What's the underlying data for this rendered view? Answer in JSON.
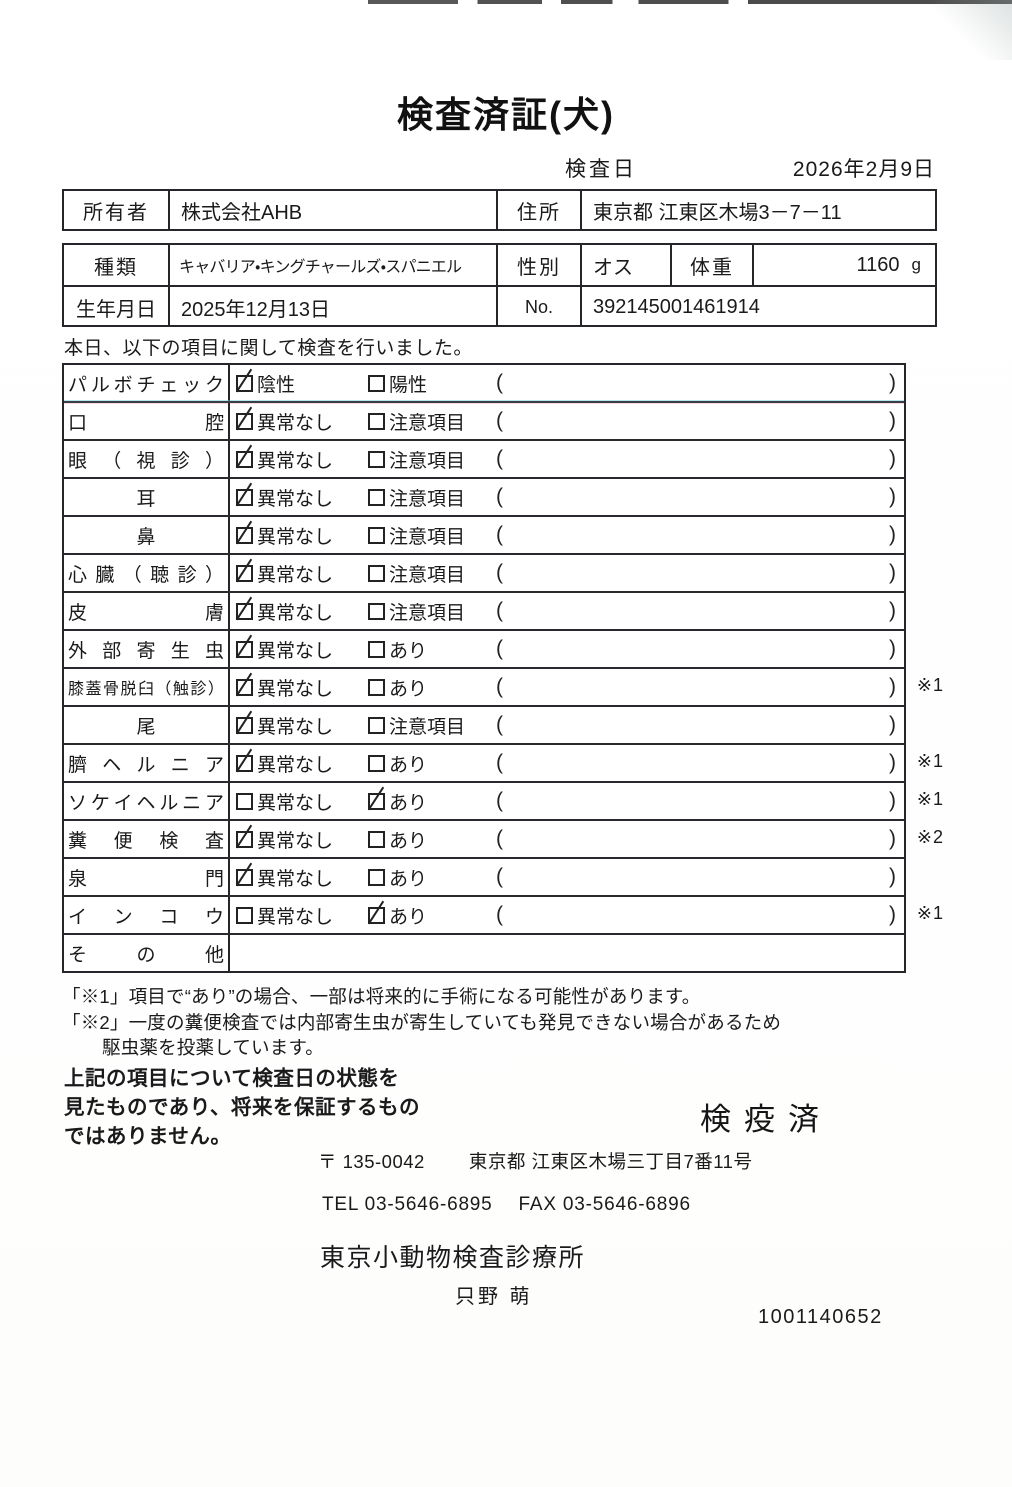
{
  "title": "検査済証(犬)",
  "exam_date": {
    "label": "検査日",
    "value": "2026年2月9日"
  },
  "owner_table": {
    "owner_label": "所有者",
    "owner_value": "株式会社AHB",
    "address_label": "住所",
    "address_value": "東京都 江東区木場3－7－11"
  },
  "info_table": {
    "breed_label": "種類",
    "breed_value": "キャバリア・キングチャールズ・スパニエル",
    "sex_label": "性別",
    "sex_value": "オス",
    "weight_label": "体重",
    "weight_value": "1160",
    "weight_unit": "g",
    "dob_label": "生年月日",
    "dob_value": "2025年12月13日",
    "no_label": "No.",
    "no_value": "392145001461914"
  },
  "intro": "本日、以下の項目に関して検査を行いました。",
  "checklist": {
    "rows": [
      {
        "label": "パルボチェック",
        "opt1": "陰性",
        "opt1_checked": true,
        "opt2": "陽性",
        "opt2_checked": false,
        "note": "",
        "empty": false
      },
      {
        "label": "口腔",
        "opt1": "異常なし",
        "opt1_checked": true,
        "opt2": "注意項目",
        "opt2_checked": false,
        "note": "",
        "empty": false
      },
      {
        "label": "眼（視診）",
        "opt1": "異常なし",
        "opt1_checked": true,
        "opt2": "注意項目",
        "opt2_checked": false,
        "note": "",
        "empty": false
      },
      {
        "label": "耳",
        "opt1": "異常なし",
        "opt1_checked": true,
        "opt2": "注意項目",
        "opt2_checked": false,
        "note": "",
        "empty": false
      },
      {
        "label": "鼻",
        "opt1": "異常なし",
        "opt1_checked": true,
        "opt2": "注意項目",
        "opt2_checked": false,
        "note": "",
        "empty": false
      },
      {
        "label": "心臓（聴診）",
        "opt1": "異常なし",
        "opt1_checked": true,
        "opt2": "注意項目",
        "opt2_checked": false,
        "note": "",
        "empty": false
      },
      {
        "label": "皮膚",
        "opt1": "異常なし",
        "opt1_checked": true,
        "opt2": "注意項目",
        "opt2_checked": false,
        "note": "",
        "empty": false
      },
      {
        "label": "外部寄生虫",
        "opt1": "異常なし",
        "opt1_checked": true,
        "opt2": "あり",
        "opt2_checked": false,
        "note": "",
        "empty": false
      },
      {
        "label": "膝蓋骨脱臼（触診）",
        "opt1": "異常なし",
        "opt1_checked": true,
        "opt2": "あり",
        "opt2_checked": false,
        "note": "※1",
        "empty": false
      },
      {
        "label": "尾",
        "opt1": "異常なし",
        "opt1_checked": true,
        "opt2": "注意項目",
        "opt2_checked": false,
        "note": "",
        "empty": false
      },
      {
        "label": "臍ヘルニア",
        "opt1": "異常なし",
        "opt1_checked": true,
        "opt2": "あり",
        "opt2_checked": false,
        "note": "※1",
        "empty": false
      },
      {
        "label": "ソケイヘルニア",
        "opt1": "異常なし",
        "opt1_checked": false,
        "opt2": "あり",
        "opt2_checked": true,
        "note": "※1",
        "empty": false
      },
      {
        "label": "糞便検査",
        "opt1": "異常なし",
        "opt1_checked": true,
        "opt2": "あり",
        "opt2_checked": false,
        "note": "※2",
        "empty": false
      },
      {
        "label": "泉門",
        "opt1": "異常なし",
        "opt1_checked": true,
        "opt2": "あり",
        "opt2_checked": false,
        "note": "",
        "empty": false
      },
      {
        "label": "インコウ",
        "opt1": "異常なし",
        "opt1_checked": false,
        "opt2": "あり",
        "opt2_checked": true,
        "note": "※1",
        "empty": false
      },
      {
        "label": "その他",
        "opt1": "",
        "opt1_checked": false,
        "opt2": "",
        "opt2_checked": false,
        "note": "",
        "empty": true
      }
    ]
  },
  "footnotes": {
    "note1": "「※1」項目で“あり”の場合、一部は将来的に手術になる可能性があります。",
    "note2_line1": "「※2」一度の糞便検査では内部寄生虫が寄生していても発見できない場合があるため",
    "note2_line2": "駆虫薬を投薬しています。"
  },
  "disclaimer": {
    "line1": "上記の項目について検査日の状態を",
    "line2": "見たものであり、将来を保証するもの",
    "line3": "ではありません。"
  },
  "stamp": "検疫済",
  "clinic": {
    "postal": "〒 135-0042",
    "address": "東京都 江東区木場三丁目7番11号",
    "tel": "TEL 03-5646-6895",
    "fax": "FAX 03-5646-6896",
    "name": "東京小動物検査診療所",
    "examiner": "只野 萌"
  },
  "doc_number": "1001140652",
  "colors": {
    "border": "#26262a",
    "text": "#1a1a1a",
    "paper": "#ffffff"
  }
}
